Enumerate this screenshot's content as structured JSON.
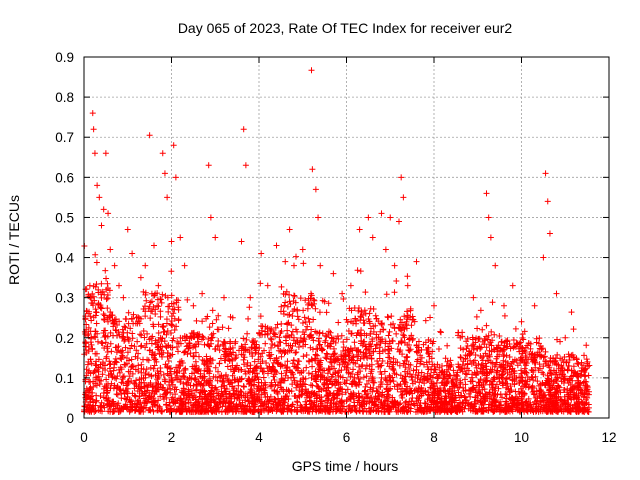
{
  "chart_data": {
    "type": "scatter",
    "title": "Day 065 of 2023, Rate Of TEC Index for receiver eur2",
    "xlabel": "GPS time / hours",
    "ylabel": "ROTI / TECUs",
    "xlim": [
      0,
      12
    ],
    "ylim": [
      0,
      0.9
    ],
    "xticks": [
      0,
      2,
      4,
      6,
      8,
      10,
      12
    ],
    "xtick_labels": [
      "0",
      "2",
      "4",
      "6",
      "8",
      "10",
      "12"
    ],
    "yticks": [
      0,
      0.1,
      0.2,
      0.3,
      0.4,
      0.5,
      0.6,
      0.7,
      0.8,
      0.9
    ],
    "ytick_labels": [
      "0",
      "0.1",
      "0.2",
      "0.3",
      "0.4",
      "0.5",
      "0.6",
      "0.7",
      "0.8",
      "0.9"
    ],
    "grid": true,
    "legend": "none",
    "marker": "+",
    "color": "#ff0000",
    "series": [
      {
        "points": [
          [
            0.05,
            0.22
          ],
          [
            0.1,
            0.14
          ],
          [
            0.15,
            0.3
          ],
          [
            0.2,
            0.76
          ],
          [
            0.22,
            0.72
          ],
          [
            0.25,
            0.66
          ],
          [
            0.3,
            0.58
          ],
          [
            0.35,
            0.55
          ],
          [
            0.4,
            0.48
          ],
          [
            0.45,
            0.52
          ],
          [
            0.5,
            0.66
          ],
          [
            0.55,
            0.51
          ],
          [
            0.6,
            0.42
          ],
          [
            0.7,
            0.38
          ],
          [
            0.8,
            0.33
          ],
          [
            0.9,
            0.3
          ],
          [
            1.0,
            0.47
          ],
          [
            1.1,
            0.41
          ],
          [
            1.2,
            0.25
          ],
          [
            1.3,
            0.35
          ],
          [
            1.4,
            0.38
          ],
          [
            1.5,
            0.705
          ],
          [
            1.6,
            0.43
          ],
          [
            1.7,
            0.33
          ],
          [
            1.8,
            0.66
          ],
          [
            1.85,
            0.61
          ],
          [
            1.9,
            0.55
          ],
          [
            2.0,
            0.44
          ],
          [
            2.05,
            0.68
          ],
          [
            2.1,
            0.6
          ],
          [
            2.2,
            0.45
          ],
          [
            2.3,
            0.38
          ],
          [
            2.5,
            0.28
          ],
          [
            2.7,
            0.31
          ],
          [
            2.85,
            0.63
          ],
          [
            2.9,
            0.5
          ],
          [
            3.0,
            0.45
          ],
          [
            3.2,
            0.3
          ],
          [
            3.4,
            0.25
          ],
          [
            3.6,
            0.44
          ],
          [
            3.65,
            0.72
          ],
          [
            3.7,
            0.63
          ],
          [
            3.8,
            0.3
          ],
          [
            4.05,
            0.41
          ],
          [
            4.2,
            0.33
          ],
          [
            4.4,
            0.43
          ],
          [
            4.6,
            0.39
          ],
          [
            4.7,
            0.47
          ],
          [
            4.8,
            0.38
          ],
          [
            5.0,
            0.42
          ],
          [
            5.2,
            0.867
          ],
          [
            5.22,
            0.62
          ],
          [
            5.3,
            0.57
          ],
          [
            5.35,
            0.5
          ],
          [
            5.4,
            0.38
          ],
          [
            5.5,
            0.29
          ],
          [
            5.7,
            0.36
          ],
          [
            5.9,
            0.31
          ],
          [
            6.1,
            0.33
          ],
          [
            6.3,
            0.47
          ],
          [
            6.5,
            0.5
          ],
          [
            6.6,
            0.45
          ],
          [
            6.8,
            0.51
          ],
          [
            6.9,
            0.42
          ],
          [
            7.0,
            0.5
          ],
          [
            7.1,
            0.38
          ],
          [
            7.2,
            0.49
          ],
          [
            7.25,
            0.6
          ],
          [
            7.3,
            0.55
          ],
          [
            7.4,
            0.33
          ],
          [
            7.6,
            0.39
          ],
          [
            8.0,
            0.28
          ],
          [
            8.3,
            0.18
          ],
          [
            8.6,
            0.2
          ],
          [
            8.9,
            0.3
          ],
          [
            9.2,
            0.56
          ],
          [
            9.25,
            0.5
          ],
          [
            9.3,
            0.45
          ],
          [
            9.4,
            0.38
          ],
          [
            9.6,
            0.28
          ],
          [
            9.8,
            0.33
          ],
          [
            10.0,
            0.24
          ],
          [
            10.3,
            0.28
          ],
          [
            10.5,
            0.4
          ],
          [
            10.55,
            0.61
          ],
          [
            10.6,
            0.54
          ],
          [
            10.65,
            0.46
          ],
          [
            10.8,
            0.31
          ],
          [
            11.0,
            0.2
          ],
          [
            11.2,
            0.15
          ],
          [
            11.45,
            0.12
          ],
          [
            0.3,
            0.1
          ],
          [
            0.5,
            0.05
          ],
          [
            0.8,
            0.12
          ],
          [
            1.2,
            0.08
          ],
          [
            1.6,
            0.15
          ],
          [
            2.0,
            0.1
          ],
          [
            2.4,
            0.06
          ],
          [
            2.8,
            0.14
          ],
          [
            3.2,
            0.08
          ],
          [
            3.6,
            0.12
          ],
          [
            4.0,
            0.05
          ],
          [
            4.4,
            0.15
          ],
          [
            4.8,
            0.2
          ],
          [
            5.2,
            0.1
          ],
          [
            5.6,
            0.18
          ],
          [
            6.0,
            0.12
          ],
          [
            6.4,
            0.15
          ],
          [
            6.8,
            0.1
          ],
          [
            7.2,
            0.08
          ],
          [
            7.6,
            0.12
          ],
          [
            8.0,
            0.06
          ],
          [
            8.4,
            0.09
          ],
          [
            8.8,
            0.07
          ],
          [
            9.2,
            0.1
          ],
          [
            9.6,
            0.12
          ],
          [
            10.0,
            0.05
          ],
          [
            10.4,
            0.08
          ],
          [
            10.8,
            0.06
          ],
          [
            11.2,
            0.05
          ],
          [
            11.5,
            0.08
          ]
        ]
      }
    ]
  }
}
